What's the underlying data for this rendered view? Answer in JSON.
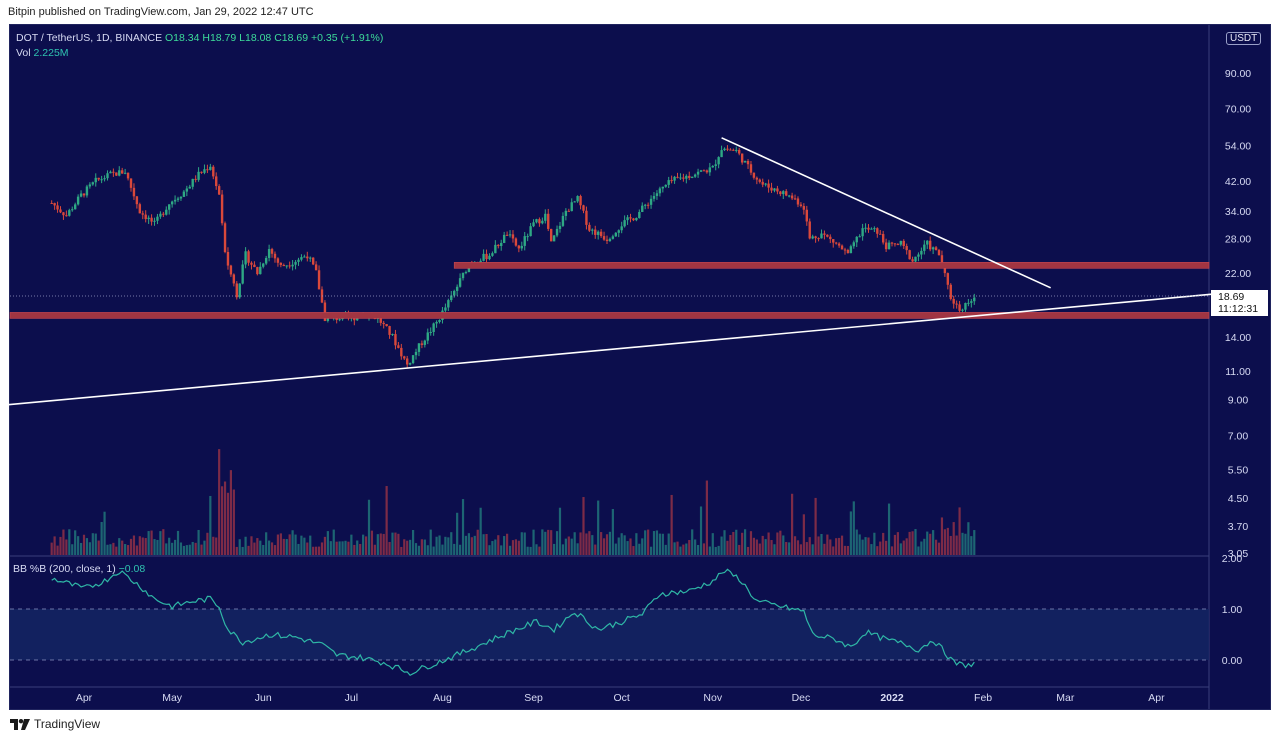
{
  "caption": "Bitpin published on TradingView.com, Jan 29, 2022 12:47 UTC",
  "footer": {
    "brand": "TradingView",
    "logo_icon": "tradingview-logo-icon"
  },
  "legend": {
    "symbol": "DOT / TetherUS, 1D, BINANCE",
    "open": "O18.34",
    "high": "H18.79",
    "low": "L18.08",
    "close": "C18.69",
    "change": "+0.35 (+1.91%)",
    "vol_label": "Vol",
    "vol_value": "2.225M"
  },
  "bb_legend": {
    "label": "BB %B (200, close, 1)",
    "value": "−0.08"
  },
  "currency_tag": "USDT",
  "price_tag": {
    "price": "18.69",
    "countdown": "11:12:31"
  },
  "colors": {
    "background": "#0c0e4d",
    "up": "#2ea884",
    "down": "#d9483b",
    "zone": "#a13542",
    "trendline": "#ffffff",
    "oscillator": "#2fb7a6"
  },
  "chart_data": [
    {
      "type": "candlestick",
      "title": "DOT / TetherUS, 1D, BINANCE",
      "scale": "log",
      "x_tick_labels": [
        "Apr",
        "May",
        "Jun",
        "Jul",
        "Aug",
        "Sep",
        "Oct",
        "Nov",
        "Dec",
        "2022",
        "Feb",
        "Mar",
        "Apr"
      ],
      "y_tick_labels": [
        "90.00",
        "70.00",
        "54.00",
        "42.00",
        "34.00",
        "28.00",
        "22.00",
        "14.00",
        "11.00",
        "9.00",
        "7.00",
        "5.50",
        "4.50",
        "3.70",
        "3.05"
      ],
      "ylim": [
        3.05,
        110
      ],
      "last_price": 18.69,
      "path": [
        [
          "2021-03-21",
          36
        ],
        [
          "2021-03-26",
          33
        ],
        [
          "2021-03-31",
          38
        ],
        [
          "2021-04-05",
          42
        ],
        [
          "2021-04-10",
          44
        ],
        [
          "2021-04-15",
          45
        ],
        [
          "2021-04-20",
          34
        ],
        [
          "2021-04-25",
          31
        ],
        [
          "2021-04-30",
          36
        ],
        [
          "2021-05-05",
          39
        ],
        [
          "2021-05-10",
          44
        ],
        [
          "2021-05-14",
          47
        ],
        [
          "2021-05-17",
          38
        ],
        [
          "2021-05-19",
          25
        ],
        [
          "2021-05-23",
          19
        ],
        [
          "2021-05-26",
          25
        ],
        [
          "2021-05-30",
          22
        ],
        [
          "2021-06-03",
          26
        ],
        [
          "2021-06-07",
          23
        ],
        [
          "2021-06-12",
          24
        ],
        [
          "2021-06-16",
          25
        ],
        [
          "2021-06-19",
          22
        ],
        [
          "2021-06-22",
          16
        ],
        [
          "2021-06-27",
          16
        ],
        [
          "2021-07-01",
          16
        ],
        [
          "2021-07-05",
          16.5
        ],
        [
          "2021-07-10",
          16
        ],
        [
          "2021-07-15",
          14
        ],
        [
          "2021-07-20",
          11.5
        ],
        [
          "2021-07-25",
          13.5
        ],
        [
          "2021-07-30",
          15.5
        ],
        [
          "2021-08-04",
          18.5
        ],
        [
          "2021-08-10",
          23.5
        ],
        [
          "2021-08-17",
          25
        ],
        [
          "2021-08-23",
          29
        ],
        [
          "2021-08-27",
          26
        ],
        [
          "2021-09-01",
          31
        ],
        [
          "2021-09-05",
          33
        ],
        [
          "2021-09-07",
          27
        ],
        [
          "2021-09-12",
          34
        ],
        [
          "2021-09-16",
          37
        ],
        [
          "2021-09-20",
          30
        ],
        [
          "2021-09-26",
          28
        ],
        [
          "2021-10-01",
          31
        ],
        [
          "2021-10-06",
          33
        ],
        [
          "2021-10-12",
          38
        ],
        [
          "2021-10-18",
          42
        ],
        [
          "2021-10-25",
          44
        ],
        [
          "2021-11-01",
          46
        ],
        [
          "2021-11-04",
          53
        ],
        [
          "2021-11-09",
          52
        ],
        [
          "2021-11-14",
          45
        ],
        [
          "2021-11-18",
          41
        ],
        [
          "2021-11-24",
          39
        ],
        [
          "2021-11-29",
          37
        ],
        [
          "2021-12-02",
          35
        ],
        [
          "2021-12-04",
          28
        ],
        [
          "2021-12-08",
          29
        ],
        [
          "2021-12-13",
          27
        ],
        [
          "2021-12-17",
          25
        ],
        [
          "2021-12-22",
          30
        ],
        [
          "2021-12-27",
          29.5
        ],
        [
          "2021-12-30",
          26.5
        ],
        [
          "2022-01-04",
          27
        ],
        [
          "2022-01-08",
          24
        ],
        [
          "2022-01-13",
          27
        ],
        [
          "2022-01-17",
          25
        ],
        [
          "2022-01-21",
          18.5
        ],
        [
          "2022-01-24",
          17
        ],
        [
          "2022-01-29",
          18.69
        ]
      ],
      "volume_label": "Vol 2.225M",
      "horizontal_zones": [
        {
          "price": 23.2,
          "from": "2021-08-05",
          "to": "chart-right"
        },
        {
          "price": 16.3,
          "from": "chart-left",
          "to": "chart-right"
        }
      ],
      "trendlines": [
        {
          "from": [
            "2021-03-01",
            8.6
          ],
          "to": [
            "2022-04-30",
            19.3
          ]
        },
        {
          "from": [
            "2021-11-04",
            57
          ],
          "to": [
            "2022-02-24",
            19.8
          ]
        }
      ]
    },
    {
      "type": "line",
      "title": "BB %B (200, close, 1)",
      "y_tick_labels": [
        "2.00",
        "1.00",
        "0.00"
      ],
      "ylim": [
        -0.3,
        2.05
      ],
      "reference_lines": [
        1,
        0
      ],
      "last_value": -0.08,
      "path": [
        [
          "2021-03-21",
          1.6
        ],
        [
          "2021-04-01",
          1.4
        ],
        [
          "2021-04-08",
          1.55
        ],
        [
          "2021-04-13",
          1.75
        ],
        [
          "2021-04-20",
          1.45
        ],
        [
          "2021-04-25",
          1.2
        ],
        [
          "2021-05-01",
          1.05
        ],
        [
          "2021-05-08",
          1.15
        ],
        [
          "2021-05-14",
          1.2
        ],
        [
          "2021-05-17",
          1.05
        ],
        [
          "2021-05-20",
          0.6
        ],
        [
          "2021-05-25",
          0.35
        ],
        [
          "2021-06-03",
          0.5
        ],
        [
          "2021-06-12",
          0.45
        ],
        [
          "2021-06-21",
          0.3
        ],
        [
          "2021-06-26",
          0.1
        ],
        [
          "2021-07-04",
          0.05
        ],
        [
          "2021-07-12",
          -0.05
        ],
        [
          "2021-07-21",
          -0.25
        ],
        [
          "2021-07-28",
          -0.1
        ],
        [
          "2021-08-06",
          0.1
        ],
        [
          "2021-08-14",
          0.3
        ],
        [
          "2021-08-24",
          0.55
        ],
        [
          "2021-09-02",
          0.75
        ],
        [
          "2021-09-08",
          0.6
        ],
        [
          "2021-09-15",
          0.95
        ],
        [
          "2021-09-23",
          0.6
        ],
        [
          "2021-10-01",
          0.75
        ],
        [
          "2021-10-08",
          0.9
        ],
        [
          "2021-10-14",
          1.3
        ],
        [
          "2021-10-24",
          1.35
        ],
        [
          "2021-11-01",
          1.55
        ],
        [
          "2021-11-05",
          1.75
        ],
        [
          "2021-11-10",
          1.6
        ],
        [
          "2021-11-16",
          1.15
        ],
        [
          "2021-11-24",
          1.05
        ],
        [
          "2021-12-02",
          0.95
        ],
        [
          "2021-12-05",
          0.5
        ],
        [
          "2021-12-13",
          0.4
        ],
        [
          "2021-12-18",
          0.25
        ],
        [
          "2021-12-23",
          0.55
        ],
        [
          "2021-12-30",
          0.4
        ],
        [
          "2022-01-06",
          0.3
        ],
        [
          "2022-01-10",
          0.2
        ],
        [
          "2022-01-15",
          0.4
        ],
        [
          "2022-01-19",
          0.15
        ],
        [
          "2022-01-22",
          -0.05
        ],
        [
          "2022-01-25",
          -0.1
        ],
        [
          "2022-01-29",
          -0.08
        ]
      ]
    }
  ]
}
